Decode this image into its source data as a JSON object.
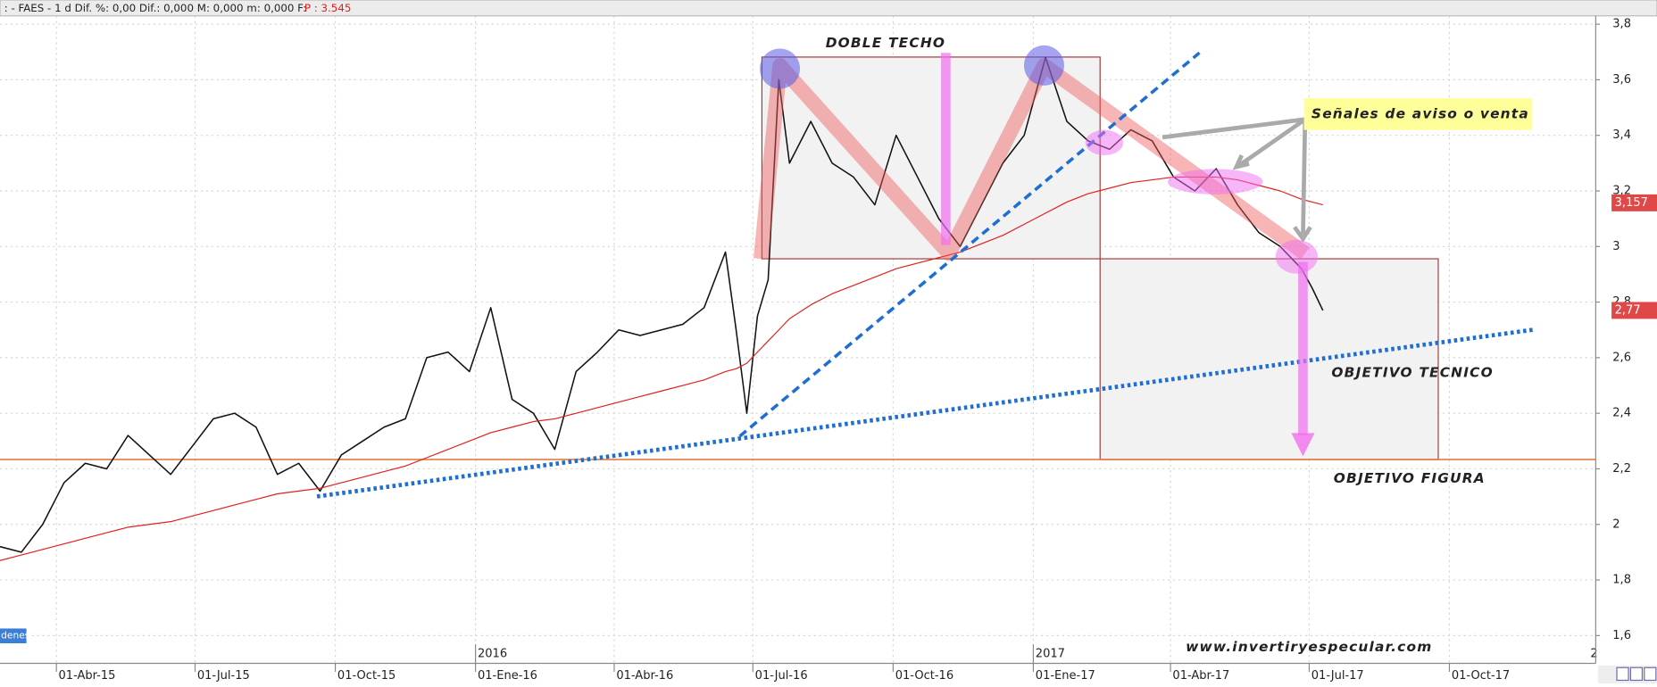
{
  "header": {
    "text": ": - FAES - 1 d Dif. %: 0,00 Dif.: 0,000 M: 0,000 m: 0,000 F:",
    "price": "P : 3.545"
  },
  "chart_data": {
    "type": "line",
    "x": [
      "2015-02-23",
      "2015-03-09",
      "2015-03-23",
      "2015-04-06",
      "2015-04-20",
      "2015-05-04",
      "2015-05-18",
      "2015-06-01",
      "2015-06-15",
      "2015-06-29",
      "2015-07-13",
      "2015-07-27",
      "2015-08-10",
      "2015-08-24",
      "2015-09-07",
      "2015-09-21",
      "2015-10-05",
      "2015-10-19",
      "2015-11-02",
      "2015-11-16",
      "2015-11-30",
      "2015-12-14",
      "2015-12-28",
      "2016-01-11",
      "2016-01-25",
      "2016-02-08",
      "2016-02-22",
      "2016-03-07",
      "2016-03-21",
      "2016-04-04",
      "2016-04-18",
      "2016-05-02",
      "2016-05-16",
      "2016-05-30",
      "2016-06-13",
      "2016-06-20",
      "2016-06-27",
      "2016-07-04",
      "2016-07-11",
      "2016-07-18",
      "2016-07-25",
      "2016-08-08",
      "2016-08-22",
      "2016-09-05",
      "2016-09-19",
      "2016-10-03",
      "2016-10-17",
      "2016-10-31",
      "2016-11-14",
      "2016-11-28",
      "2016-12-12",
      "2016-12-26",
      "2017-01-09",
      "2017-01-23",
      "2017-02-06",
      "2017-02-20",
      "2017-03-06",
      "2017-03-20",
      "2017-04-03",
      "2017-04-17",
      "2017-05-01",
      "2017-05-15",
      "2017-05-29",
      "2017-06-12",
      "2017-06-26",
      "2017-07-03",
      "2017-07-10"
    ],
    "series": [
      {
        "color": "#111111",
        "values": [
          1.92,
          1.9,
          2.0,
          2.15,
          2.22,
          2.2,
          2.32,
          2.25,
          2.18,
          2.28,
          2.38,
          2.4,
          2.35,
          2.18,
          2.22,
          2.12,
          2.25,
          2.3,
          2.35,
          2.38,
          2.6,
          2.62,
          2.55,
          2.78,
          2.45,
          2.4,
          2.27,
          2.55,
          2.62,
          2.7,
          2.68,
          2.7,
          2.72,
          2.78,
          2.98,
          2.7,
          2.4,
          2.75,
          2.88,
          3.6,
          3.3,
          3.45,
          3.3,
          3.25,
          3.15,
          3.4,
          3.25,
          3.1,
          3.0,
          3.15,
          3.3,
          3.4,
          3.68,
          3.45,
          3.38,
          3.35,
          3.42,
          3.38,
          3.25,
          3.2,
          3.28,
          3.15,
          3.05,
          3.0,
          2.92,
          2.85,
          2.77
        ]
      },
      {
        "color": "#e02020",
        "values": [
          1.87,
          1.89,
          1.91,
          1.93,
          1.95,
          1.97,
          1.99,
          2.0,
          2.01,
          2.03,
          2.05,
          2.07,
          2.09,
          2.11,
          2.12,
          2.13,
          2.15,
          2.17,
          2.19,
          2.21,
          2.24,
          2.27,
          2.3,
          2.33,
          2.35,
          2.37,
          2.38,
          2.4,
          2.42,
          2.44,
          2.46,
          2.48,
          2.5,
          2.52,
          2.55,
          2.56,
          2.58,
          2.62,
          2.66,
          2.7,
          2.74,
          2.79,
          2.83,
          2.86,
          2.89,
          2.92,
          2.94,
          2.96,
          2.98,
          3.01,
          3.04,
          3.08,
          3.12,
          3.16,
          3.19,
          3.21,
          3.23,
          3.24,
          3.25,
          3.25,
          3.25,
          3.24,
          3.22,
          3.2,
          3.17,
          3.16,
          3.15
        ]
      }
    ],
    "xlim": [
      "2015-02-23",
      "2018-01-05"
    ],
    "xticks": [
      {
        "value": "2015-04-01",
        "label": "01-Abr-15"
      },
      {
        "value": "2015-07-01",
        "label": "01-Jul-15"
      },
      {
        "value": "2015-10-01",
        "label": "01-Oct-15"
      },
      {
        "value": "2016-01-01",
        "label": "01-Ene-16"
      },
      {
        "value": "2016-04-01",
        "label": "01-Abr-16"
      },
      {
        "value": "2016-07-01",
        "label": "01-Jul-16"
      },
      {
        "value": "2016-10-01",
        "label": "01-Oct-16"
      },
      {
        "value": "2017-01-01",
        "label": "01-Ene-17"
      },
      {
        "value": "2017-04-01",
        "label": "01-Abr-17"
      },
      {
        "value": "2017-07-01",
        "label": "01-Jul-17"
      },
      {
        "value": "2017-10-01",
        "label": "01-Oct-17"
      }
    ],
    "year_ticks": [
      {
        "value": "2016-01-01",
        "label": "2016"
      },
      {
        "value": "2017-01-01",
        "label": "2017"
      }
    ],
    "ylim": [
      1.5,
      3.83
    ],
    "yticks": [
      {
        "value": 1.6,
        "label": "1,6"
      },
      {
        "value": 1.8,
        "label": "1,8"
      },
      {
        "value": 2,
        "label": "2"
      },
      {
        "value": 2.2,
        "label": "2,2"
      },
      {
        "value": 2.4,
        "label": "2,4"
      },
      {
        "value": 2.6,
        "label": "2,6"
      },
      {
        "value": 2.8,
        "label": "2,8"
      },
      {
        "value": 3,
        "label": "3"
      },
      {
        "value": 3.2,
        "label": "3,2"
      },
      {
        "value": 3.4,
        "label": "3,4"
      },
      {
        "value": 3.6,
        "label": "3,6"
      },
      {
        "value": 3.8,
        "label": "3,8"
      }
    ],
    "grid": true,
    "price_tags": [
      {
        "value": 3.157,
        "label": "3,157",
        "color": "#e04848"
      },
      {
        "value": 2.77,
        "label": "2,77",
        "color": "#e04848"
      }
    ],
    "annotations": [
      "DOBLE TECHO",
      "Señales de aviso o venta",
      "OBJETIVO TECNICO",
      "OBJETIVO FIGURA",
      "www.invertiryespecular.com",
      "denes",
      "2"
    ]
  }
}
